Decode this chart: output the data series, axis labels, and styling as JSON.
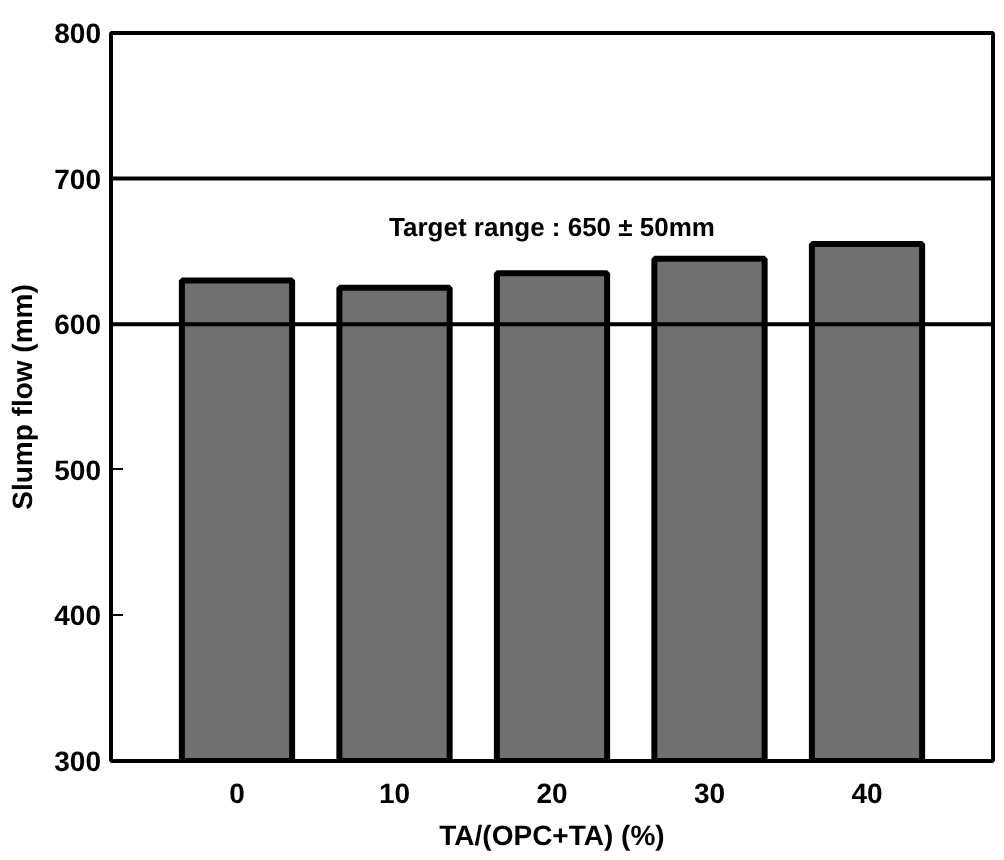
{
  "chart_data": {
    "type": "bar",
    "xlabel": "TA/(OPC+TA) (%)",
    "ylabel": "Slump flow (mm)",
    "categories": [
      "0",
      "10",
      "20",
      "30",
      "40"
    ],
    "values": [
      630,
      625,
      635,
      645,
      655
    ],
    "color": "#707070",
    "ylim": [
      300,
      800
    ],
    "yticks": [
      300,
      400,
      500,
      600,
      700,
      800
    ],
    "grid": false,
    "ref_lines": [
      {
        "axis": "y",
        "value": 600,
        "color": "#000000"
      },
      {
        "axis": "y",
        "value": 700,
        "color": "#000000"
      }
    ],
    "annotations": [
      "Target range : 650 ± 50mm"
    ]
  }
}
